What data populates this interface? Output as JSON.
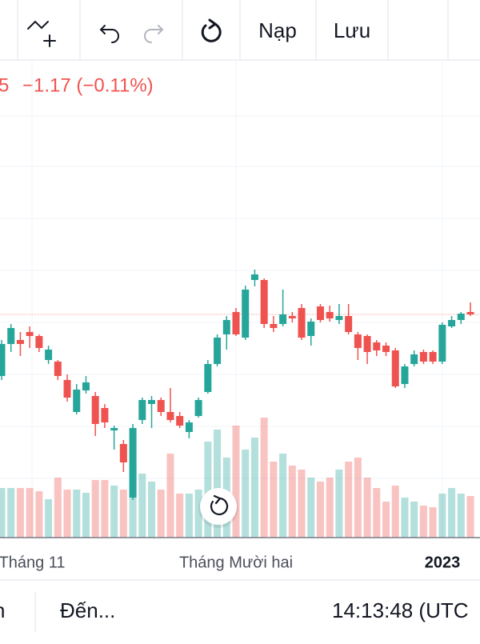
{
  "toolbar": {
    "buttons": [
      "Nạp",
      "Lưu"
    ]
  },
  "header": {
    "price_fragment": "5",
    "change": "−1.17 (−0.11%)"
  },
  "chart_data": {
    "type": "candlestick",
    "open": [
      210,
      250,
      255,
      265,
      260,
      230,
      228,
      205,
      165,
      192,
      185,
      170,
      142,
      125,
      58,
      155,
      175,
      180,
      165,
      160,
      140,
      160,
      190,
      225,
      262,
      290,
      258,
      330,
      330,
      275,
      275,
      285,
      295,
      260,
      297,
      290,
      280,
      285,
      262,
      260,
      252,
      248,
      242,
      200,
      225,
      240,
      240,
      228,
      272,
      280,
      290
    ],
    "high": [
      255,
      275,
      265,
      272,
      262,
      248,
      230,
      212,
      200,
      210,
      190,
      175,
      148,
      130,
      150,
      183,
      185,
      183,
      195,
      165,
      155,
      183,
      230,
      262,
      285,
      295,
      323,
      343,
      332,
      285,
      318,
      290,
      300,
      282,
      300,
      298,
      300,
      300,
      265,
      262,
      255,
      252,
      245,
      225,
      242,
      243,
      242,
      277,
      285,
      290,
      302
    ],
    "low": [
      205,
      240,
      235,
      245,
      240,
      225,
      205,
      178,
      162,
      188,
      135,
      145,
      118,
      90,
      55,
      150,
      145,
      160,
      152,
      145,
      132,
      158,
      188,
      222,
      243,
      260,
      255,
      322,
      270,
      265,
      272,
      277,
      255,
      248,
      277,
      278,
      275,
      262,
      230,
      225,
      235,
      235,
      195,
      195,
      222,
      225,
      225,
      225,
      270,
      275,
      285
    ],
    "close": [
      250,
      270,
      250,
      260,
      245,
      243,
      210,
      183,
      193,
      202,
      150,
      152,
      145,
      102,
      145,
      180,
      180,
      165,
      155,
      148,
      152,
      180,
      225,
      258,
      280,
      262,
      318,
      337,
      275,
      270,
      287,
      282,
      258,
      278,
      280,
      282,
      285,
      265,
      245,
      240,
      242,
      240,
      197,
      222,
      237,
      228,
      228,
      274,
      280,
      288,
      287
    ],
    "volume": [
      62,
      62,
      62,
      62,
      58,
      48,
      75,
      60,
      60,
      56,
      72,
      72,
      65,
      60,
      92,
      80,
      70,
      60,
      105,
      55,
      55,
      60,
      120,
      135,
      100,
      140,
      110,
      125,
      150,
      95,
      105,
      90,
      85,
      75,
      70,
      75,
      85,
      95,
      100,
      75,
      62,
      45,
      65,
      50,
      45,
      40,
      38,
      55,
      62,
      55,
      52
    ],
    "ylim": [
      0,
      605
    ],
    "y2lim": [
      0,
      605
    ],
    "up_color": "#26a69a",
    "down_color": "#ef5350",
    "price_line": 287,
    "grid": true,
    "x_labels": [
      "Tháng 11",
      "Tháng Mười hai",
      "2023"
    ]
  },
  "footer": {
    "left": "n",
    "range": "Đến...",
    "time": "14:13:48 (UTC"
  }
}
